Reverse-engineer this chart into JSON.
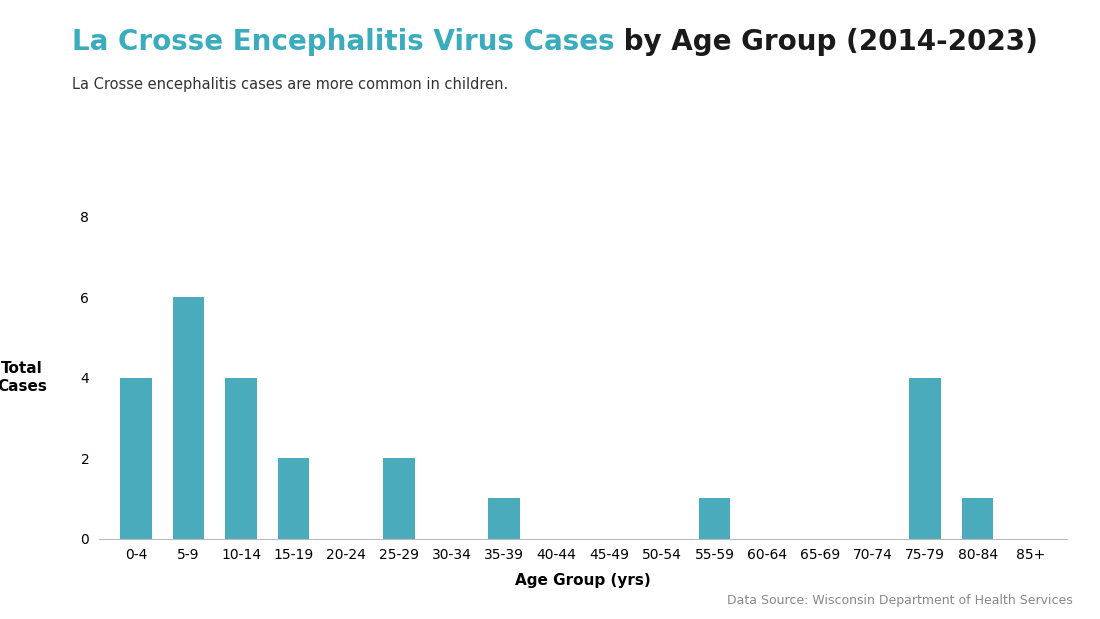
{
  "title_part1": "La Crosse Encephalitis Virus Cases",
  "title_part2": " by Age Group (2014-2023)",
  "subtitle": "La Crosse encephalitis cases are more common in children.",
  "xlabel": "Age Group (yrs)",
  "ylabel": "Total\nCases",
  "categories": [
    "0-4",
    "5-9",
    "10-14",
    "15-19",
    "20-24",
    "25-29",
    "30-34",
    "35-39",
    "40-44",
    "45-49",
    "50-54",
    "55-59",
    "60-64",
    "65-69",
    "70-74",
    "75-79",
    "80-84",
    "85+"
  ],
  "values": [
    4,
    6,
    4,
    2,
    0,
    2,
    0,
    1,
    0,
    0,
    0,
    1,
    0,
    0,
    0,
    4,
    1,
    0
  ],
  "bar_color": "#4aabbd",
  "ylim": [
    0,
    8
  ],
  "yticks": [
    0,
    2,
    4,
    6,
    8
  ],
  "title_color1": "#3aacbe",
  "title_color2": "#1a1a1a",
  "subtitle_color": "#333333",
  "source_text": "Data Source: Wisconsin Department of Health Services",
  "source_color": "#888888",
  "background_color": "#ffffff",
  "title_fontsize": 20,
  "subtitle_fontsize": 10.5,
  "axis_fontsize": 10,
  "xlabel_fontsize": 11,
  "ylabel_fontsize": 11,
  "source_fontsize": 9
}
